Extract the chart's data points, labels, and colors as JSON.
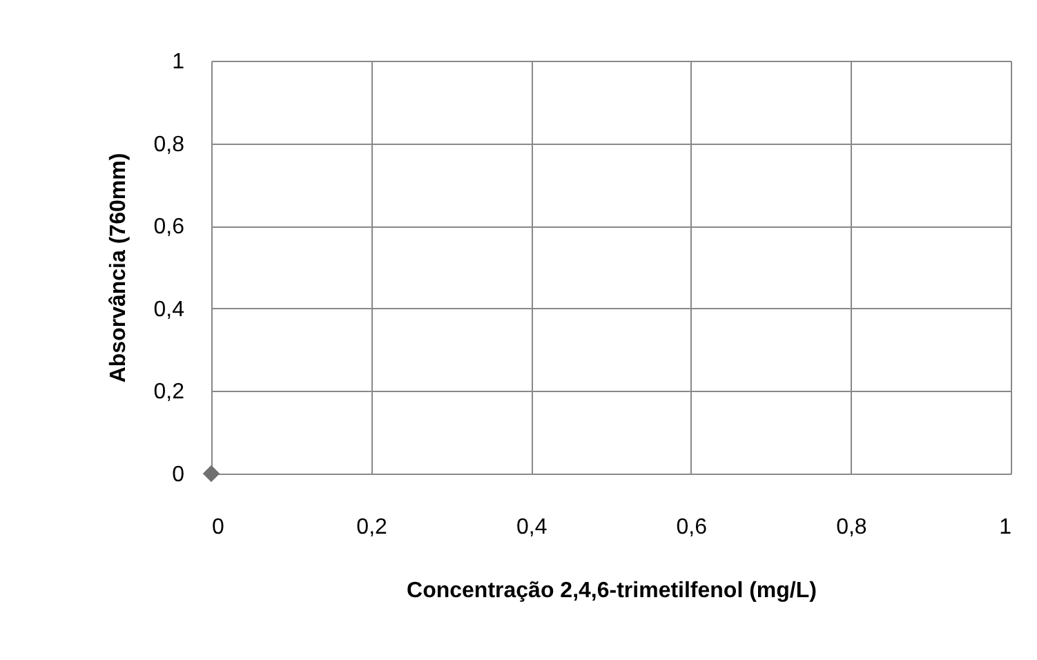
{
  "chart_data": {
    "type": "scatter",
    "xlabel": "Concentração 2,4,6-trimetilfenol (mg/L)",
    "ylabel": "Absorvância (760mm)",
    "x": [
      0
    ],
    "series": [
      {
        "color": "#707070",
        "values": [
          0
        ]
      }
    ],
    "marker": "diamond",
    "xlim": [
      0,
      1
    ],
    "ylim": [
      0,
      1
    ],
    "xticks": [
      0,
      {
        "value": 0.2,
        "label": "0,2"
      },
      {
        "value": 0.4,
        "label": "0,4"
      },
      {
        "value": 0.6,
        "label": "0,6"
      },
      {
        "value": 0.8,
        "label": "0,8"
      },
      1
    ],
    "yticks": [
      0,
      {
        "value": 0.2,
        "label": "0,2"
      },
      {
        "value": 0.4,
        "label": "0,4"
      },
      {
        "value": 0.6,
        "label": "0,6"
      },
      {
        "value": 0.8,
        "label": "0,8"
      },
      1
    ],
    "grid": true
  }
}
